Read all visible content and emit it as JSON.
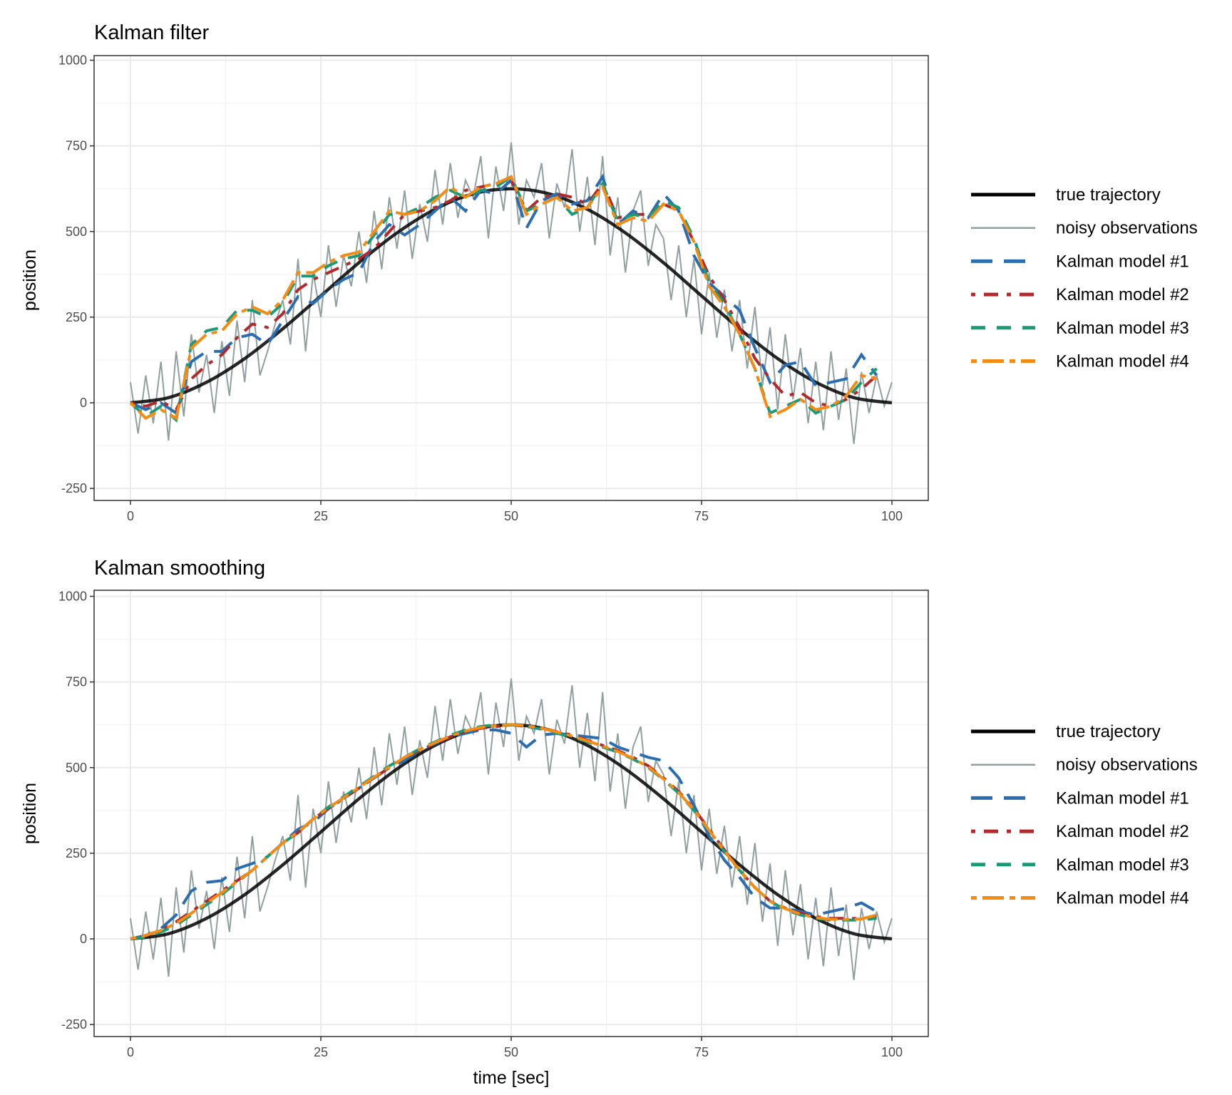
{
  "chart_data": [
    {
      "type": "line",
      "title": "Kalman filter",
      "xlabel": "",
      "ylabel": "position",
      "xlim": [
        -5,
        105
      ],
      "ylim": [
        -300,
        1010
      ],
      "xticks": [
        0,
        25,
        50,
        75,
        100
      ],
      "yticks": [
        -250,
        0,
        250,
        500,
        750,
        1000
      ],
      "grid": true,
      "legend_position": "right",
      "estimate_t": [
        0,
        2,
        4,
        6,
        8,
        10,
        12,
        14,
        16,
        18,
        20,
        22,
        24,
        26,
        28,
        30,
        32,
        34,
        36,
        38,
        40,
        42,
        44,
        46,
        48,
        50,
        52,
        54,
        56,
        58,
        60,
        62,
        64,
        66,
        68,
        70,
        72,
        74,
        76,
        78,
        80,
        82,
        84,
        86,
        88,
        90,
        92,
        94,
        96,
        98
      ],
      "series": [
        {
          "name": "Kalman model #1",
          "color": "#2a6db0",
          "style": "longdash",
          "values": [
            0,
            -20,
            0,
            -30,
            120,
            150,
            150,
            190,
            200,
            170,
            240,
            310,
            290,
            330,
            360,
            380,
            470,
            520,
            490,
            520,
            560,
            600,
            560,
            620,
            610,
            650,
            510,
            590,
            610,
            580,
            590,
            660,
            520,
            560,
            540,
            610,
            560,
            430,
            350,
            310,
            270,
            160,
            60,
            110,
            120,
            50,
            60,
            70,
            140,
            80
          ]
        },
        {
          "name": "Kalman model #2",
          "color": "#b2282b",
          "style": "dotdash",
          "values": [
            0,
            -10,
            5,
            -20,
            70,
            110,
            140,
            190,
            230,
            220,
            260,
            330,
            360,
            380,
            400,
            420,
            450,
            500,
            550,
            560,
            570,
            590,
            620,
            630,
            640,
            650,
            560,
            600,
            610,
            600,
            580,
            640,
            540,
            550,
            550,
            580,
            560,
            470,
            370,
            300,
            220,
            130,
            70,
            20,
            30,
            0,
            -10,
            10,
            40,
            80
          ]
        },
        {
          "name": "Kalman model #3",
          "color": "#1b9a77",
          "style": "dashed",
          "values": [
            0,
            -40,
            -10,
            -50,
            170,
            210,
            220,
            270,
            270,
            250,
            290,
            370,
            370,
            400,
            420,
            430,
            490,
            550,
            550,
            570,
            600,
            620,
            600,
            620,
            630,
            660,
            560,
            580,
            600,
            550,
            570,
            640,
            530,
            550,
            540,
            590,
            570,
            480,
            350,
            290,
            200,
            100,
            -30,
            -10,
            10,
            -30,
            -10,
            10,
            60,
            100
          ]
        },
        {
          "name": "Kalman model #4",
          "color": "#f28c14",
          "style": "twodash",
          "values": [
            0,
            -45,
            -20,
            -45,
            160,
            200,
            210,
            260,
            280,
            260,
            300,
            380,
            380,
            410,
            430,
            440,
            500,
            560,
            550,
            560,
            590,
            630,
            600,
            630,
            640,
            660,
            550,
            580,
            600,
            560,
            570,
            630,
            520,
            540,
            530,
            580,
            560,
            470,
            340,
            280,
            200,
            100,
            -40,
            -20,
            10,
            -20,
            -10,
            20,
            80,
            70
          ]
        }
      ]
    },
    {
      "type": "line",
      "title": "Kalman smoothing",
      "xlabel": "time [sec]",
      "ylabel": "position",
      "xlim": [
        -5,
        105
      ],
      "ylim": [
        -300,
        1010
      ],
      "xticks": [
        0,
        25,
        50,
        75,
        100
      ],
      "yticks": [
        -250,
        0,
        250,
        500,
        750,
        1000
      ],
      "grid": true,
      "legend_position": "right",
      "estimate_t": [
        0,
        2,
        4,
        6,
        8,
        10,
        12,
        14,
        16,
        18,
        20,
        22,
        24,
        26,
        28,
        30,
        32,
        34,
        36,
        38,
        40,
        42,
        44,
        46,
        48,
        50,
        52,
        54,
        56,
        58,
        60,
        62,
        64,
        66,
        68,
        70,
        72,
        74,
        76,
        78,
        80,
        82,
        84,
        86,
        88,
        90,
        92,
        94,
        96,
        98
      ],
      "series": [
        {
          "name": "Kalman model #1",
          "color": "#2a6db0",
          "style": "longdash",
          "values": [
            0,
            10,
            30,
            70,
            140,
            165,
            170,
            205,
            220,
            240,
            280,
            320,
            340,
            380,
            410,
            440,
            470,
            500,
            520,
            550,
            570,
            590,
            600,
            610,
            610,
            600,
            560,
            595,
            600,
            595,
            590,
            585,
            560,
            545,
            530,
            520,
            470,
            390,
            300,
            230,
            180,
            120,
            90,
            90,
            80,
            70,
            80,
            90,
            105,
            80
          ]
        },
        {
          "name": "Kalman model #2",
          "color": "#b2282b",
          "style": "dotdash",
          "values": [
            0,
            10,
            25,
            50,
            80,
            110,
            140,
            170,
            200,
            240,
            280,
            310,
            350,
            380,
            410,
            440,
            470,
            500,
            530,
            550,
            570,
            590,
            605,
            615,
            620,
            625,
            620,
            615,
            605,
            595,
            580,
            565,
            550,
            530,
            505,
            470,
            430,
            380,
            320,
            260,
            200,
            150,
            110,
            90,
            75,
            65,
            60,
            60,
            60,
            65
          ]
        },
        {
          "name": "Kalman model #3",
          "color": "#1b9a77",
          "style": "dashed",
          "values": [
            0,
            5,
            20,
            40,
            70,
            100,
            130,
            165,
            200,
            240,
            280,
            310,
            350,
            385,
            415,
            445,
            475,
            505,
            530,
            555,
            575,
            595,
            610,
            620,
            625,
            625,
            620,
            612,
            600,
            590,
            575,
            560,
            545,
            525,
            500,
            465,
            425,
            375,
            315,
            255,
            200,
            150,
            110,
            85,
            70,
            60,
            55,
            55,
            55,
            60
          ]
        },
        {
          "name": "Kalman model #4",
          "color": "#f28c14",
          "style": "twodash",
          "values": [
            0,
            10,
            25,
            45,
            75,
            105,
            135,
            168,
            200,
            240,
            280,
            312,
            350,
            383,
            412,
            442,
            472,
            502,
            530,
            553,
            573,
            592,
            607,
            617,
            622,
            626,
            622,
            615,
            604,
            592,
            578,
            563,
            547,
            527,
            502,
            467,
            427,
            377,
            317,
            257,
            200,
            150,
            110,
            88,
            72,
            62,
            57,
            57,
            58,
            70
          ]
        }
      ]
    }
  ],
  "shared_series": {
    "true_trajectory": {
      "name": "true trajectory",
      "color": "#000000",
      "t": [
        0,
        5,
        10,
        15,
        20,
        25,
        30,
        35,
        40,
        45,
        50,
        55,
        60,
        65,
        70,
        75,
        80,
        85,
        90,
        95,
        100
      ],
      "values": [
        0,
        15,
        60,
        129,
        216,
        312,
        409,
        496,
        565,
        610,
        625,
        610,
        565,
        496,
        409,
        312,
        216,
        129,
        60,
        15,
        0
      ]
    },
    "noisy_observations": {
      "name": "noisy observations",
      "color": "#8fa09e",
      "t_range": [
        0,
        100
      ],
      "values": [
        60,
        -90,
        80,
        -60,
        120,
        -110,
        150,
        -40,
        200,
        30,
        140,
        -30,
        180,
        20,
        240,
        60,
        300,
        80,
        150,
        230,
        300,
        170,
        420,
        150,
        380,
        250,
        460,
        280,
        430,
        340,
        500,
        350,
        560,
        390,
        600,
        450,
        620,
        420,
        580,
        470,
        680,
        520,
        700,
        540,
        650,
        600,
        720,
        480,
        690,
        560,
        760,
        520,
        650,
        600,
        700,
        480,
        640,
        570,
        740,
        500,
        660,
        460,
        720,
        430,
        600,
        380,
        560,
        620,
        400,
        520,
        480,
        300,
        460,
        250,
        420,
        200,
        380,
        190,
        330,
        150,
        300,
        100,
        280,
        50,
        220,
        -20,
        200,
        10,
        160,
        -60,
        120,
        -80,
        150,
        -50,
        100,
        -120,
        90,
        -30,
        80,
        -10,
        60
      ]
    }
  },
  "legend": {
    "items": [
      "true trajectory",
      "noisy observations",
      "Kalman model #1",
      "Kalman model #2",
      "Kalman model #3",
      "Kalman model #4"
    ]
  }
}
